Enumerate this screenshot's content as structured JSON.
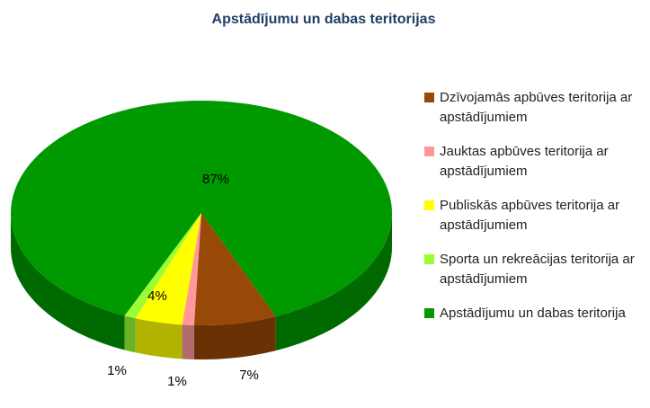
{
  "chart_data": {
    "type": "pie3d",
    "title": "Apstādījumu un dabas teritorijas",
    "categories": [
      "Dzīvojamās apbūves teritorija ar apstādījumiem",
      "Jauktas apbūves teritorija ar apstādījumiem",
      "Publiskās apbūves teritorija ar apstādījumiem",
      "Sporta un rekreācijas teritorija ar apstādījumiem",
      "Apstādījumu un dabas teritorija"
    ],
    "values": [
      7,
      1,
      4,
      1,
      87
    ],
    "value_labels": [
      "7%",
      "1%",
      "4%",
      "1%",
      "87%"
    ],
    "colors": [
      "#984807",
      "#ff9999",
      "#ffff00",
      "#99ff33",
      "#009900"
    ],
    "legend": "right"
  }
}
